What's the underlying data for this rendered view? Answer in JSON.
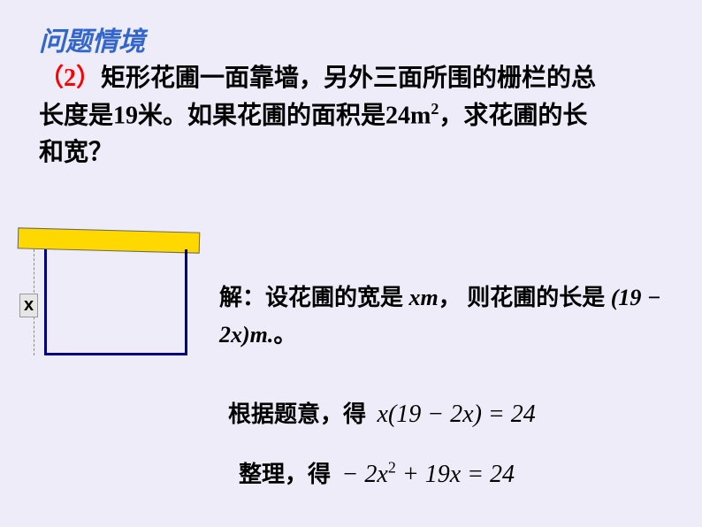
{
  "title": "问题情境",
  "problem": {
    "paren_open": "（",
    "num": "2",
    "paren_close": "）",
    "text_a": "矩形花圃一面靠墙，另外三面所围的栅栏的总长度是",
    "len": "19",
    "text_b": "米。如果花圃的面积是",
    "area": "24m",
    "sq": "2",
    "text_c": "，求花圃的长和宽？"
  },
  "diagram": {
    "x_label": "x",
    "wall_color": "#ffd800",
    "fence_color": "#000080"
  },
  "solution": {
    "line1_a": "解：设花圃的宽是 ",
    "xm": "xm",
    "line1_b": "，  则花圃的长是 ",
    "expr_len": "(19 − 2x)m.",
    "line1_c": "。",
    "line2_a": "根据题意，得",
    "eq2": "x(19 − 2x) = 24",
    "line3_a": "整理，得",
    "eq3_pre": "− 2x",
    "eq3_sq": "2",
    "eq3_post": " + 19x = 24"
  },
  "colors": {
    "background": "#eeecf9",
    "title": "#3366cc",
    "paren": "#ff0000"
  }
}
